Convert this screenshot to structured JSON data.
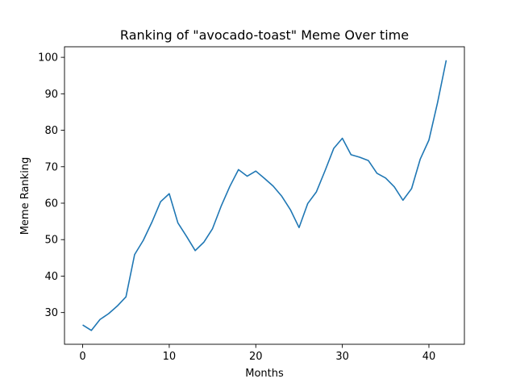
{
  "chart_data": {
    "type": "line",
    "title": "Ranking of \"avocado-toast\" Meme Over time",
    "xlabel": "Months",
    "ylabel": "Meme Ranking",
    "xlim": [
      -2.1,
      44.1
    ],
    "ylim": [
      21.3,
      102.9
    ],
    "xticks": [
      0,
      10,
      20,
      30,
      40
    ],
    "yticks": [
      30,
      40,
      50,
      60,
      70,
      80,
      90,
      100
    ],
    "grid": false,
    "line_color": "#1f77b4",
    "series": [
      {
        "x": [
          0,
          1,
          2,
          3,
          4,
          5,
          6,
          7,
          8,
          9,
          10,
          11,
          12,
          13,
          14,
          15,
          16,
          17,
          18,
          19,
          20,
          21,
          22,
          23,
          24,
          25,
          26,
          27,
          28,
          29,
          30,
          31,
          32,
          33,
          34,
          35,
          36,
          37,
          38,
          39,
          40,
          41,
          42
        ],
        "values": [
          26.6,
          25.1,
          28.1,
          29.7,
          31.8,
          34.3,
          45.9,
          49.8,
          54.8,
          60.4,
          62.6,
          54.6,
          50.9,
          47.0,
          49.3,
          53.0,
          59.2,
          64.6,
          69.2,
          67.4,
          68.8,
          66.8,
          64.7,
          61.9,
          58.2,
          53.3,
          59.9,
          63.1,
          68.9,
          75.0,
          77.8,
          73.3,
          72.6,
          71.7,
          68.2,
          66.9,
          64.5,
          60.8,
          64.0,
          72.1,
          77.3,
          87.6,
          99.2
        ]
      }
    ]
  }
}
